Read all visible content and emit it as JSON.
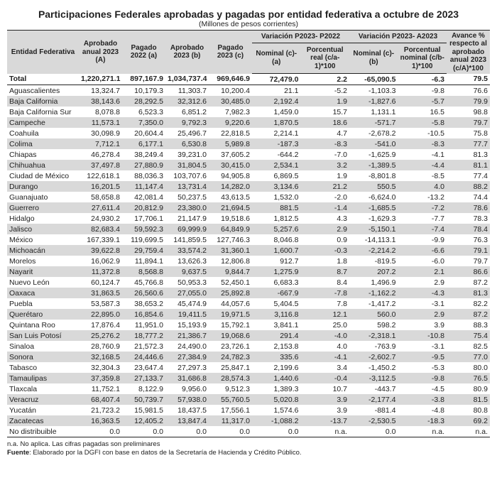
{
  "title": "Participaciones Federales aprobadas y pagadas por entidad federativa a octubre de 2023",
  "subtitle": "(Millones de pesos corrientes)",
  "header": {
    "entidad": "Entidad Federativa",
    "apr_a": "Aprobado anual 2023 (A)",
    "pag_a": "Pagado 2022 (a)",
    "apr_b": "Aprobado 2023 (b)",
    "pag_c": "Pagado 2023 (c)",
    "var1": "Variación P2023- P2022",
    "var1_nom": "Nominal (c)-(a)",
    "var1_pct": "Porcentual real (c/a-1)*100",
    "var2": "Variación P2023- A2023",
    "var2_nom": "Nominal (c)-(b)",
    "var2_pct": "Porcentual nominal (c/b-1)*100",
    "avance": "Avance % respecto al aprobado anual 2023 (c/A)*100"
  },
  "total": {
    "label": "Total",
    "A": "1,220,271.1",
    "a": "897,167.9",
    "b": "1,034,737.4",
    "c": "969,646.9",
    "n1": "72,479.0",
    "p1": "2.2",
    "n2": "-65,090.5",
    "p2": "-6.3",
    "av": "79.5"
  },
  "rows": [
    {
      "label": "Aguascalientes",
      "A": "13,324.7",
      "a": "10,179.3",
      "b": "11,303.7",
      "c": "10,200.4",
      "n1": "21.1",
      "p1": "-5.2",
      "n2": "-1,103.3",
      "p2": "-9.8",
      "av": "76.6"
    },
    {
      "label": "Baja California",
      "A": "38,143.6",
      "a": "28,292.5",
      "b": "32,312.6",
      "c": "30,485.0",
      "n1": "2,192.4",
      "p1": "1.9",
      "n2": "-1,827.6",
      "p2": "-5.7",
      "av": "79.9"
    },
    {
      "label": "Baja California Sur",
      "A": "8,078.8",
      "a": "6,523.3",
      "b": "6,851.2",
      "c": "7,982.3",
      "n1": "1,459.0",
      "p1": "15.7",
      "n2": "1,131.1",
      "p2": "16.5",
      "av": "98.8"
    },
    {
      "label": "Campeche",
      "A": "11,573.1",
      "a": "7,350.0",
      "b": "9,792.3",
      "c": "9,220.6",
      "n1": "1,870.5",
      "p1": "18.6",
      "n2": "-571.7",
      "p2": "-5.8",
      "av": "79.7"
    },
    {
      "label": "Coahuila",
      "A": "30,098.9",
      "a": "20,604.4",
      "b": "25,496.7",
      "c": "22,818.5",
      "n1": "2,214.1",
      "p1": "4.7",
      "n2": "-2,678.2",
      "p2": "-10.5",
      "av": "75.8"
    },
    {
      "label": "Colima",
      "A": "7,712.1",
      "a": "6,177.1",
      "b": "6,530.8",
      "c": "5,989.8",
      "n1": "-187.3",
      "p1": "-8.3",
      "n2": "-541.0",
      "p2": "-8.3",
      "av": "77.7"
    },
    {
      "label": "Chiapas",
      "A": "46,278.4",
      "a": "38,249.4",
      "b": "39,231.0",
      "c": "37,605.2",
      "n1": "-644.2",
      "p1": "-7.0",
      "n2": "-1,625.9",
      "p2": "-4.1",
      "av": "81.3"
    },
    {
      "label": "Chihuahua",
      "A": "37,497.8",
      "a": "27,880.9",
      "b": "31,804.5",
      "c": "30,415.0",
      "n1": "2,534.1",
      "p1": "3.2",
      "n2": "-1,389.5",
      "p2": "-4.4",
      "av": "81.1"
    },
    {
      "label": "Ciudad de México",
      "A": "122,618.1",
      "a": "88,036.3",
      "b": "103,707.6",
      "c": "94,905.8",
      "n1": "6,869.5",
      "p1": "1.9",
      "n2": "-8,801.8",
      "p2": "-8.5",
      "av": "77.4"
    },
    {
      "label": "Durango",
      "A": "16,201.5",
      "a": "11,147.4",
      "b": "13,731.4",
      "c": "14,282.0",
      "n1": "3,134.6",
      "p1": "21.2",
      "n2": "550.5",
      "p2": "4.0",
      "av": "88.2"
    },
    {
      "label": "Guanajuato",
      "A": "58,658.8",
      "a": "42,081.4",
      "b": "50,237.5",
      "c": "43,613.5",
      "n1": "1,532.0",
      "p1": "-2.0",
      "n2": "-6,624.0",
      "p2": "-13.2",
      "av": "74.4"
    },
    {
      "label": "Guerrero",
      "A": "27,611.4",
      "a": "20,812.9",
      "b": "23,380.0",
      "c": "21,694.5",
      "n1": "881.5",
      "p1": "-1.4",
      "n2": "-1,685.5",
      "p2": "-7.2",
      "av": "78.6"
    },
    {
      "label": "Hidalgo",
      "A": "24,930.2",
      "a": "17,706.1",
      "b": "21,147.9",
      "c": "19,518.6",
      "n1": "1,812.5",
      "p1": "4.3",
      "n2": "-1,629.3",
      "p2": "-7.7",
      "av": "78.3"
    },
    {
      "label": "Jalisco",
      "A": "82,683.4",
      "a": "59,592.3",
      "b": "69,999.9",
      "c": "64,849.9",
      "n1": "5,257.6",
      "p1": "2.9",
      "n2": "-5,150.1",
      "p2": "-7.4",
      "av": "78.4"
    },
    {
      "label": "México",
      "A": "167,339.1",
      "a": "119,699.5",
      "b": "141,859.5",
      "c": "127,746.3",
      "n1": "8,046.8",
      "p1": "0.9",
      "n2": "-14,113.1",
      "p2": "-9.9",
      "av": "76.3"
    },
    {
      "label": "Michoacán",
      "A": "39,622.8",
      "a": "29,759.4",
      "b": "33,574.2",
      "c": "31,360.1",
      "n1": "1,600.7",
      "p1": "-0.3",
      "n2": "-2,214.2",
      "p2": "-6.6",
      "av": "79.1"
    },
    {
      "label": "Morelos",
      "A": "16,062.9",
      "a": "11,894.1",
      "b": "13,626.3",
      "c": "12,806.8",
      "n1": "912.7",
      "p1": "1.8",
      "n2": "-819.5",
      "p2": "-6.0",
      "av": "79.7"
    },
    {
      "label": "Nayarit",
      "A": "11,372.8",
      "a": "8,568.8",
      "b": "9,637.5",
      "c": "9,844.7",
      "n1": "1,275.9",
      "p1": "8.7",
      "n2": "207.2",
      "p2": "2.1",
      "av": "86.6"
    },
    {
      "label": "Nuevo León",
      "A": "60,124.7",
      "a": "45,766.8",
      "b": "50,953.3",
      "c": "52,450.1",
      "n1": "6,683.3",
      "p1": "8.4",
      "n2": "1,496.9",
      "p2": "2.9",
      "av": "87.2"
    },
    {
      "label": "Oaxaca",
      "A": "31,863.5",
      "a": "26,560.6",
      "b": "27,055.0",
      "c": "25,892.8",
      "n1": "-667.9",
      "p1": "-7.8",
      "n2": "-1,162.2",
      "p2": "-4.3",
      "av": "81.3"
    },
    {
      "label": "Puebla",
      "A": "53,587.3",
      "a": "38,653.2",
      "b": "45,474.9",
      "c": "44,057.6",
      "n1": "5,404.5",
      "p1": "7.8",
      "n2": "-1,417.2",
      "p2": "-3.1",
      "av": "82.2"
    },
    {
      "label": "Querétaro",
      "A": "22,895.0",
      "a": "16,854.6",
      "b": "19,411.5",
      "c": "19,971.5",
      "n1": "3,116.8",
      "p1": "12.1",
      "n2": "560.0",
      "p2": "2.9",
      "av": "87.2"
    },
    {
      "label": "Quintana Roo",
      "A": "17,876.4",
      "a": "11,951.0",
      "b": "15,193.9",
      "c": "15,792.1",
      "n1": "3,841.1",
      "p1": "25.0",
      "n2": "598.2",
      "p2": "3.9",
      "av": "88.3"
    },
    {
      "label": "San Luis Potosí",
      "A": "25,276.2",
      "a": "18,777.2",
      "b": "21,386.7",
      "c": "19,068.6",
      "n1": "291.4",
      "p1": "-4.0",
      "n2": "-2,318.1",
      "p2": "-10.8",
      "av": "75.4"
    },
    {
      "label": "Sinaloa",
      "A": "28,760.9",
      "a": "21,572.3",
      "b": "24,490.0",
      "c": "23,726.1",
      "n1": "2,153.8",
      "p1": "4.0",
      "n2": "-763.9",
      "p2": "-3.1",
      "av": "82.5"
    },
    {
      "label": "Sonora",
      "A": "32,168.5",
      "a": "24,446.6",
      "b": "27,384.9",
      "c": "24,782.3",
      "n1": "335.6",
      "p1": "-4.1",
      "n2": "-2,602.7",
      "p2": "-9.5",
      "av": "77.0"
    },
    {
      "label": "Tabasco",
      "A": "32,304.3",
      "a": "23,647.4",
      "b": "27,297.3",
      "c": "25,847.1",
      "n1": "2,199.6",
      "p1": "3.4",
      "n2": "-1,450.2",
      "p2": "-5.3",
      "av": "80.0"
    },
    {
      "label": "Tamaulipas",
      "A": "37,359.8",
      "a": "27,133.7",
      "b": "31,686.8",
      "c": "28,574.3",
      "n1": "1,440.6",
      "p1": "-0.4",
      "n2": "-3,112.5",
      "p2": "-9.8",
      "av": "76.5"
    },
    {
      "label": "Tlaxcala",
      "A": "11,752.1",
      "a": "8,122.9",
      "b": "9,956.0",
      "c": "9,512.3",
      "n1": "1,389.3",
      "p1": "10.7",
      "n2": "-443.7",
      "p2": "-4.5",
      "av": "80.9"
    },
    {
      "label": "Veracruz",
      "A": "68,407.4",
      "a": "50,739.7",
      "b": "57,938.0",
      "c": "55,760.5",
      "n1": "5,020.8",
      "p1": "3.9",
      "n2": "-2,177.4",
      "p2": "-3.8",
      "av": "81.5"
    },
    {
      "label": "Yucatán",
      "A": "21,723.2",
      "a": "15,981.5",
      "b": "18,437.5",
      "c": "17,556.1",
      "n1": "1,574.6",
      "p1": "3.9",
      "n2": "-881.4",
      "p2": "-4.8",
      "av": "80.8"
    },
    {
      "label": "Zacatecas",
      "A": "16,363.5",
      "a": "12,405.2",
      "b": "13,847.4",
      "c": "11,317.0",
      "n1": "-1,088.2",
      "p1": "-13.7",
      "n2": "-2,530.5",
      "p2": "-18.3",
      "av": "69.2"
    },
    {
      "label": "No distribuible",
      "A": "0.0",
      "a": "0.0",
      "b": "0.0",
      "c": "0.0",
      "n1": "0.0",
      "p1": "n.a.",
      "n2": "0.0",
      "p2": "n.a.",
      "av": "n.a."
    }
  ],
  "footnotes": {
    "l1": "n.a. No aplica. Las cifras pagadas son preliminares",
    "l2_label": "Fuente",
    "l2_text": ": Elaborado por la DGFI con base en datos de la Secretaría de Hacienda y Crédito Público."
  }
}
